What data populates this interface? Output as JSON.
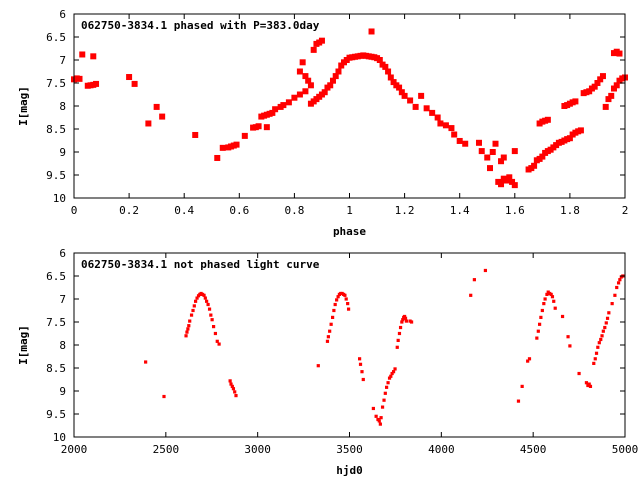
{
  "chart_data": [
    {
      "type": "scatter",
      "title": "062750-3834.1 phased with P=383.0day",
      "xlabel": "phase",
      "ylabel": "I[mag]",
      "xlim": [
        0,
        2
      ],
      "ylim": [
        6,
        10
      ],
      "y_inverted": true,
      "grid": false,
      "legend": "none",
      "color": "#ff0000",
      "xticks": [
        0,
        0.2,
        0.4,
        0.6,
        0.8,
        1,
        1.2,
        1.4,
        1.6,
        1.8,
        2
      ],
      "xtick_labels": [
        "0",
        "0.2",
        "0.4",
        "0.6",
        "0.8",
        "1",
        "1.2",
        "1.4",
        "1.6",
        "1.8",
        "2"
      ],
      "yticks": [
        6,
        6.5,
        7,
        7.5,
        8,
        8.5,
        9,
        9.5,
        10
      ],
      "ytick_labels": [
        "6",
        "6.5",
        "7",
        "7.5",
        "8",
        "8.5",
        "9",
        "9.5",
        "10"
      ],
      "points": [
        [
          0.0,
          7.42
        ],
        [
          0.01,
          7.4
        ],
        [
          0.02,
          7.41
        ],
        [
          0.03,
          6.88
        ],
        [
          0.05,
          7.56
        ],
        [
          0.06,
          7.55
        ],
        [
          0.07,
          7.54
        ],
        [
          0.07,
          6.92
        ],
        [
          0.08,
          7.52
        ],
        [
          0.2,
          7.37
        ],
        [
          0.22,
          7.52
        ],
        [
          0.27,
          8.38
        ],
        [
          0.3,
          8.02
        ],
        [
          0.32,
          8.23
        ],
        [
          0.44,
          8.63
        ],
        [
          0.52,
          9.13
        ],
        [
          0.54,
          8.91
        ],
        [
          0.56,
          8.9
        ],
        [
          0.57,
          8.88
        ],
        [
          0.58,
          8.86
        ],
        [
          0.59,
          8.84
        ],
        [
          0.62,
          8.65
        ],
        [
          0.65,
          8.47
        ],
        [
          0.66,
          8.46
        ],
        [
          0.67,
          8.44
        ],
        [
          0.68,
          8.23
        ],
        [
          0.69,
          8.21
        ],
        [
          0.7,
          8.19
        ],
        [
          0.71,
          8.17
        ],
        [
          0.72,
          8.15
        ],
        [
          0.7,
          8.46
        ],
        [
          0.73,
          8.07
        ],
        [
          0.75,
          8.02
        ],
        [
          0.76,
          7.98
        ],
        [
          0.78,
          7.92
        ],
        [
          0.8,
          7.82
        ],
        [
          0.82,
          7.75
        ],
        [
          0.84,
          7.68
        ],
        [
          0.82,
          7.25
        ],
        [
          0.83,
          7.05
        ],
        [
          0.84,
          7.35
        ],
        [
          0.85,
          7.45
        ],
        [
          0.86,
          7.55
        ],
        [
          0.86,
          7.95
        ],
        [
          0.87,
          7.9
        ],
        [
          0.87,
          6.78
        ],
        [
          0.88,
          6.65
        ],
        [
          0.89,
          6.62
        ],
        [
          0.9,
          6.58
        ],
        [
          0.88,
          7.85
        ],
        [
          0.89,
          7.8
        ],
        [
          0.9,
          7.75
        ],
        [
          0.91,
          7.7
        ],
        [
          0.92,
          7.6
        ],
        [
          0.93,
          7.55
        ],
        [
          0.94,
          7.45
        ],
        [
          0.95,
          7.35
        ],
        [
          0.96,
          7.25
        ],
        [
          0.97,
          7.12
        ],
        [
          0.98,
          7.05
        ],
        [
          0.99,
          7.0
        ],
        [
          1.0,
          6.95
        ],
        [
          1.01,
          6.94
        ],
        [
          1.02,
          6.93
        ],
        [
          1.03,
          6.92
        ],
        [
          1.04,
          6.91
        ],
        [
          1.05,
          6.9
        ],
        [
          1.06,
          6.91
        ],
        [
          1.07,
          6.92
        ],
        [
          1.08,
          6.93
        ],
        [
          1.09,
          6.94
        ],
        [
          1.1,
          6.96
        ],
        [
          1.11,
          7.0
        ],
        [
          1.08,
          6.38
        ],
        [
          1.12,
          7.1
        ],
        [
          1.13,
          7.15
        ],
        [
          1.14,
          7.25
        ],
        [
          1.15,
          7.38
        ],
        [
          1.16,
          7.48
        ],
        [
          1.17,
          7.55
        ],
        [
          1.18,
          7.6
        ],
        [
          1.19,
          7.7
        ],
        [
          1.2,
          7.78
        ],
        [
          1.22,
          7.88
        ],
        [
          1.24,
          8.02
        ],
        [
          1.26,
          7.78
        ],
        [
          1.28,
          8.05
        ],
        [
          1.3,
          8.15
        ],
        [
          1.32,
          8.25
        ],
        [
          1.33,
          8.38
        ],
        [
          1.35,
          8.42
        ],
        [
          1.37,
          8.48
        ],
        [
          1.38,
          8.62
        ],
        [
          1.4,
          8.76
        ],
        [
          1.42,
          8.82
        ],
        [
          1.47,
          8.8
        ],
        [
          1.48,
          8.98
        ],
        [
          1.5,
          9.12
        ],
        [
          1.51,
          9.35
        ],
        [
          1.52,
          9.0
        ],
        [
          1.53,
          8.82
        ],
        [
          1.54,
          9.65
        ],
        [
          1.55,
          9.7
        ],
        [
          1.56,
          9.58
        ],
        [
          1.57,
          9.62
        ],
        [
          1.58,
          9.55
        ],
        [
          1.59,
          9.65
        ],
        [
          1.6,
          9.72
        ],
        [
          1.55,
          9.2
        ],
        [
          1.56,
          9.12
        ],
        [
          1.6,
          8.98
        ],
        [
          1.65,
          9.38
        ],
        [
          1.66,
          9.35
        ],
        [
          1.67,
          9.3
        ],
        [
          1.68,
          9.18
        ],
        [
          1.69,
          9.15
        ],
        [
          1.7,
          9.1
        ],
        [
          1.71,
          9.02
        ],
        [
          1.72,
          8.98
        ],
        [
          1.73,
          8.95
        ],
        [
          1.74,
          8.9
        ],
        [
          1.75,
          8.85
        ],
        [
          1.76,
          8.8
        ],
        [
          1.77,
          8.78
        ],
        [
          1.78,
          8.75
        ],
        [
          1.79,
          8.72
        ],
        [
          1.8,
          8.7
        ],
        [
          1.81,
          8.62
        ],
        [
          1.82,
          8.58
        ],
        [
          1.83,
          8.55
        ],
        [
          1.84,
          8.53
        ],
        [
          1.69,
          8.38
        ],
        [
          1.7,
          8.34
        ],
        [
          1.71,
          8.32
        ],
        [
          1.72,
          8.3
        ],
        [
          1.78,
          8.0
        ],
        [
          1.79,
          7.98
        ],
        [
          1.8,
          7.95
        ],
        [
          1.81,
          7.92
        ],
        [
          1.82,
          7.9
        ],
        [
          1.85,
          7.72
        ],
        [
          1.86,
          7.7
        ],
        [
          1.87,
          7.68
        ],
        [
          1.88,
          7.62
        ],
        [
          1.89,
          7.58
        ],
        [
          1.9,
          7.5
        ],
        [
          1.91,
          7.42
        ],
        [
          1.92,
          7.35
        ],
        [
          1.93,
          8.02
        ],
        [
          1.94,
          7.85
        ],
        [
          1.95,
          7.78
        ],
        [
          1.96,
          7.62
        ],
        [
          1.97,
          7.55
        ],
        [
          1.98,
          7.45
        ],
        [
          1.99,
          7.4
        ],
        [
          2.0,
          7.38
        ],
        [
          1.96,
          6.85
        ],
        [
          1.97,
          6.82
        ],
        [
          1.98,
          6.86
        ]
      ]
    },
    {
      "type": "scatter",
      "title": "062750-3834.1 not phased light curve",
      "xlabel": "hjd0",
      "ylabel": "I[mag]",
      "xlim": [
        2000,
        5000
      ],
      "ylim": [
        6,
        10
      ],
      "y_inverted": true,
      "grid": false,
      "legend": "none",
      "color": "#ff0000",
      "xticks": [
        2000,
        2500,
        3000,
        3500,
        4000,
        4500,
        5000
      ],
      "xtick_labels": [
        "2000",
        "2500",
        "3000",
        "3500",
        "4000",
        "4500",
        "5000"
      ],
      "yticks": [
        6,
        6.5,
        7,
        7.5,
        8,
        8.5,
        9,
        9.5,
        10
      ],
      "ytick_labels": [
        "6",
        "6.5",
        "7",
        "7.5",
        "8",
        "8.5",
        "9",
        "9.5",
        "10"
      ],
      "points": [
        [
          2390,
          8.37
        ],
        [
          2490,
          9.12
        ],
        [
          2610,
          7.8
        ],
        [
          2615,
          7.72
        ],
        [
          2620,
          7.65
        ],
        [
          2625,
          7.58
        ],
        [
          2630,
          7.48
        ],
        [
          2640,
          7.35
        ],
        [
          2648,
          7.25
        ],
        [
          2655,
          7.15
        ],
        [
          2662,
          7.05
        ],
        [
          2670,
          6.98
        ],
        [
          2678,
          6.93
        ],
        [
          2685,
          6.9
        ],
        [
          2692,
          6.88
        ],
        [
          2700,
          6.9
        ],
        [
          2708,
          6.92
        ],
        [
          2715,
          6.98
        ],
        [
          2722,
          7.05
        ],
        [
          2730,
          7.12
        ],
        [
          2738,
          7.22
        ],
        [
          2745,
          7.35
        ],
        [
          2752,
          7.45
        ],
        [
          2760,
          7.6
        ],
        [
          2770,
          7.75
        ],
        [
          2780,
          7.92
        ],
        [
          2790,
          7.98
        ],
        [
          2850,
          8.78
        ],
        [
          2855,
          8.85
        ],
        [
          2862,
          8.9
        ],
        [
          2868,
          8.95
        ],
        [
          2875,
          9.02
        ],
        [
          2882,
          9.1
        ],
        [
          3330,
          8.45
        ],
        [
          3380,
          7.92
        ],
        [
          3385,
          7.82
        ],
        [
          3392,
          7.7
        ],
        [
          3400,
          7.55
        ],
        [
          3408,
          7.4
        ],
        [
          3415,
          7.25
        ],
        [
          3422,
          7.12
        ],
        [
          3430,
          7.02
        ],
        [
          3438,
          6.95
        ],
        [
          3445,
          6.9
        ],
        [
          3452,
          6.88
        ],
        [
          3460,
          6.88
        ],
        [
          3468,
          6.9
        ],
        [
          3475,
          6.92
        ],
        [
          3482,
          7.0
        ],
        [
          3490,
          7.1
        ],
        [
          3495,
          7.22
        ],
        [
          3555,
          8.3
        ],
        [
          3560,
          8.42
        ],
        [
          3568,
          8.58
        ],
        [
          3575,
          8.75
        ],
        [
          3630,
          9.38
        ],
        [
          3645,
          9.55
        ],
        [
          3655,
          9.62
        ],
        [
          3662,
          9.65
        ],
        [
          3668,
          9.72
        ],
        [
          3672,
          9.58
        ],
        [
          3680,
          9.35
        ],
        [
          3688,
          9.2
        ],
        [
          3695,
          9.05
        ],
        [
          3702,
          8.92
        ],
        [
          3710,
          8.82
        ],
        [
          3718,
          8.72
        ],
        [
          3725,
          8.68
        ],
        [
          3732,
          8.62
        ],
        [
          3740,
          8.58
        ],
        [
          3748,
          8.52
        ],
        [
          3760,
          8.05
        ],
        [
          3765,
          7.9
        ],
        [
          3772,
          7.75
        ],
        [
          3778,
          7.62
        ],
        [
          3785,
          7.5
        ],
        [
          3790,
          7.45
        ],
        [
          3795,
          7.4
        ],
        [
          3800,
          7.38
        ],
        [
          3805,
          7.42
        ],
        [
          3810,
          7.48
        ],
        [
          3830,
          7.48
        ],
        [
          3838,
          7.5
        ],
        [
          4160,
          6.92
        ],
        [
          4180,
          6.58
        ],
        [
          4240,
          6.38
        ],
        [
          4420,
          9.22
        ],
        [
          4440,
          8.9
        ],
        [
          4470,
          8.35
        ],
        [
          4480,
          8.3
        ],
        [
          4520,
          7.85
        ],
        [
          4528,
          7.7
        ],
        [
          4535,
          7.55
        ],
        [
          4542,
          7.4
        ],
        [
          4550,
          7.25
        ],
        [
          4558,
          7.1
        ],
        [
          4565,
          7.0
        ],
        [
          4575,
          6.9
        ],
        [
          4582,
          6.85
        ],
        [
          4590,
          6.88
        ],
        [
          4598,
          6.9
        ],
        [
          4605,
          6.95
        ],
        [
          4612,
          7.05
        ],
        [
          4620,
          7.2
        ],
        [
          4660,
          7.38
        ],
        [
          4690,
          7.82
        ],
        [
          4700,
          8.02
        ],
        [
          4750,
          8.62
        ],
        [
          4790,
          8.82
        ],
        [
          4798,
          8.88
        ],
        [
          4805,
          8.85
        ],
        [
          4812,
          8.9
        ],
        [
          4830,
          8.4
        ],
        [
          4838,
          8.3
        ],
        [
          4845,
          8.18
        ],
        [
          4852,
          8.05
        ],
        [
          4860,
          7.95
        ],
        [
          4868,
          7.88
        ],
        [
          4875,
          7.8
        ],
        [
          4882,
          7.7
        ],
        [
          4890,
          7.62
        ],
        [
          4898,
          7.52
        ],
        [
          4905,
          7.42
        ],
        [
          4912,
          7.3
        ],
        [
          4930,
          7.1
        ],
        [
          4945,
          6.92
        ],
        [
          4955,
          6.75
        ],
        [
          4965,
          6.65
        ],
        [
          4972,
          6.58
        ],
        [
          4980,
          6.52
        ],
        [
          4988,
          6.5
        ]
      ]
    }
  ]
}
